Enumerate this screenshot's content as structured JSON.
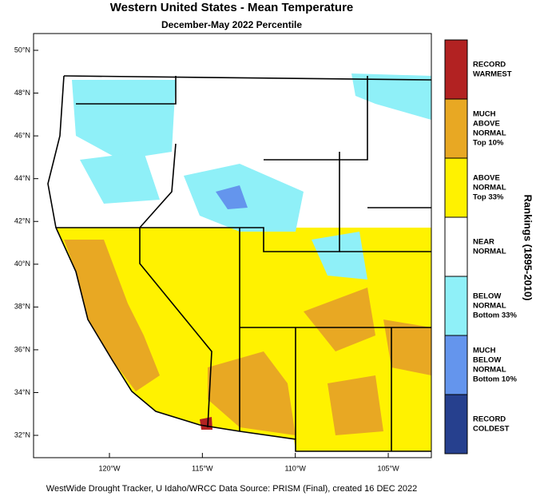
{
  "header": {
    "title": "Western United States - Mean Temperature",
    "subtitle": "December-May 2022 Percentile"
  },
  "map": {
    "lat_ticks": [
      {
        "value": 50,
        "label": "50°N"
      },
      {
        "value": 48,
        "label": "48°N"
      },
      {
        "value": 46,
        "label": "46°N"
      },
      {
        "value": 44,
        "label": "44°N"
      },
      {
        "value": 42,
        "label": "42°N"
      },
      {
        "value": 40,
        "label": "40°N"
      },
      {
        "value": 38,
        "label": "38°N"
      },
      {
        "value": 36,
        "label": "36°N"
      },
      {
        "value": 34,
        "label": "34°N"
      },
      {
        "value": 32,
        "label": "32°N"
      }
    ],
    "lon_ticks": [
      {
        "value": -120,
        "label": "120°W"
      },
      {
        "value": -115,
        "label": "115°W"
      },
      {
        "value": -110,
        "label": "110°W"
      },
      {
        "value": -105,
        "label": "105°W"
      }
    ]
  },
  "legend": {
    "title": "Rankings (1895-2010)",
    "entries": [
      {
        "lines": [
          "RECORD",
          "WARMEST"
        ],
        "color": "#b22222"
      },
      {
        "lines": [
          "MUCH",
          "ABOVE",
          "NORMAL",
          "Top 10%"
        ],
        "color": "#e8a823"
      },
      {
        "lines": [
          "ABOVE",
          "NORMAL",
          "Top 33%"
        ],
        "color": "#fff200"
      },
      {
        "lines": [
          "NEAR",
          "NORMAL"
        ],
        "color": "#ffffff"
      },
      {
        "lines": [
          "BELOW",
          "NORMAL",
          "Bottom 33%"
        ],
        "color": "#8ff0f8"
      },
      {
        "lines": [
          "MUCH",
          "BELOW",
          "NORMAL",
          "Bottom 10%"
        ],
        "color": "#6495ed"
      },
      {
        "lines": [
          "RECORD",
          "COLDEST"
        ],
        "color": "#26408e"
      }
    ]
  },
  "footer": "WestWide Drought Tracker, U Idaho/WRCC Data Source: PRISM (Final), created 16 DEC 2022"
}
